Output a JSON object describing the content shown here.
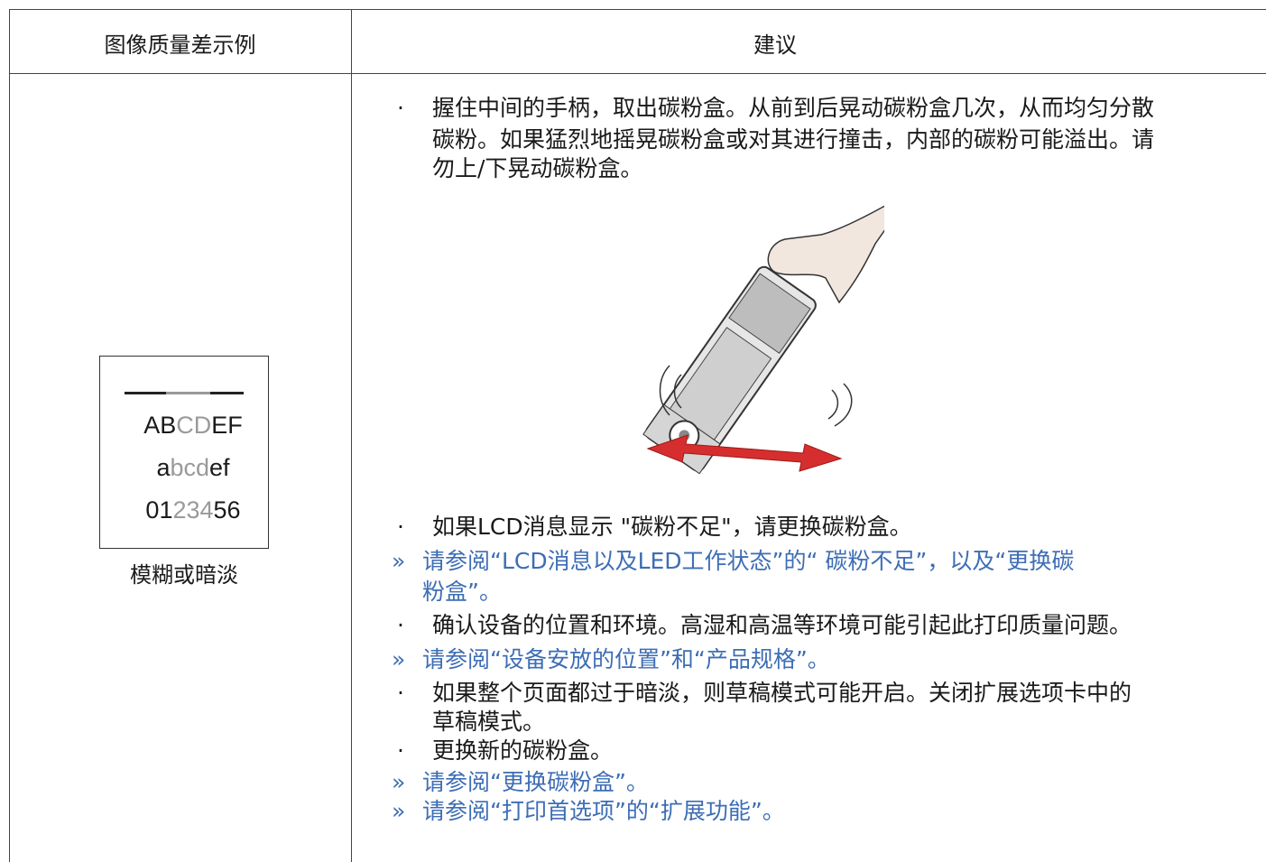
{
  "header": {
    "col1": "图像质量差示例",
    "col2": "建议"
  },
  "sample": {
    "lines": [
      [
        "AB",
        "CD",
        "EF"
      ],
      [
        "a",
        "bcd",
        "ef"
      ],
      [
        "01",
        "234",
        "56"
      ]
    ],
    "caption": "模糊或暗淡"
  },
  "advice": {
    "before": [
      {
        "marker": "·",
        "lines": [
          "握住中间的手柄，取出碳粉盒。从前到后晃动碳粉盒几次，从而均匀分散",
          "碳粉。如果猛烈地摇晃碳粉盒或对其进行撞击，内部的碳粉可能溢出。请",
          "勿上/下晃动碳粉盒。"
        ]
      }
    ],
    "after": [
      {
        "marker": "·",
        "lines": [
          "如果LCD消息显示 \"碳粉不足\"，请更换碳粉盒。"
        ]
      },
      {
        "marker": "»",
        "lines": [
          "请参阅“LCD消息以及LED工作状态”的“ 碳粉不足”，以及“更换碳",
          "粉盒”。"
        ]
      },
      {
        "marker": "·",
        "lines": [
          "确认设备的位置和环境。高湿和高温等环境可能引起此打印质量问题。"
        ]
      },
      {
        "marker": "»",
        "lines": [
          "请参阅“设备安放的位置”和“产品规格”。"
        ]
      },
      {
        "marker": "·",
        "lines": [
          "如果整个页面都过于暗淡，则草稿模式可能开启。关闭扩展选项卡中的",
          "草稿模式。"
        ]
      },
      {
        "marker": "·",
        "lines": [
          "更换新的碳粉盒。"
        ]
      },
      {
        "marker": "»",
        "lines": [
          "请参阅“更换碳粉盒”。"
        ]
      },
      {
        "marker": "»",
        "lines": [
          "请参阅“打印首选项”的“扩展功能”。"
        ]
      }
    ]
  }
}
